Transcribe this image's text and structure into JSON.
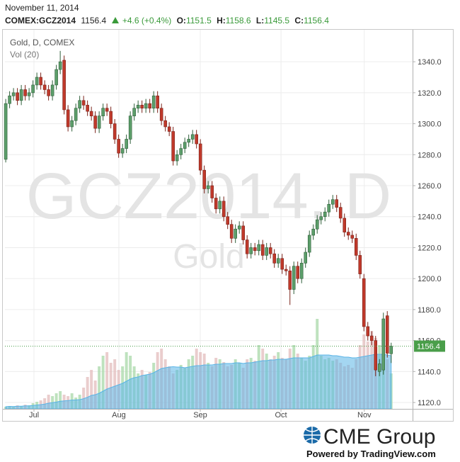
{
  "chart_data": {
    "type": "candlestick",
    "date_label": "November 11, 2014",
    "symbol": "COMEX:GCZ2014",
    "change": "+4.6 (+0.4%)",
    "ohlc_labels": [
      "O:",
      "H:",
      "L:",
      "C:"
    ],
    "legend": "Gold, D, COMEX",
    "volume_label": "Vol (20)",
    "watermark": "GCZ2014, D",
    "watermark_sub": "Gold",
    "open": [
      1277,
      1313,
      1318,
      1320,
      1315,
      1322,
      1318,
      1320,
      1325,
      1330,
      1325,
      1322,
      1318,
      1325,
      1335,
      1341,
      1309,
      1298,
      1302,
      1310,
      1315,
      1312,
      1308,
      1305,
      1297,
      1305,
      1310,
      1308,
      1300,
      1290,
      1281,
      1284,
      1290,
      1305,
      1310,
      1312,
      1310,
      1313,
      1310,
      1318,
      1310,
      1302,
      1298,
      1295,
      1276,
      1280,
      1284,
      1288,
      1290,
      1293,
      1287,
      1270,
      1258,
      1260,
      1252,
      1245,
      1250,
      1240,
      1235,
      1226,
      1232,
      1234,
      1225,
      1216,
      1220,
      1218,
      1222,
      1215,
      1220,
      1216,
      1210,
      1213,
      1206,
      1205,
      1193,
      1208,
      1200,
      1210,
      1217,
      1228,
      1232,
      1238,
      1240,
      1243,
      1248,
      1251,
      1246,
      1239,
      1230,
      1228,
      1226,
      1215,
      1200,
      1169,
      1163,
      1160,
      1140,
      1141,
      1176,
      1151.5
    ],
    "high": [
      1316,
      1321,
      1323,
      1323,
      1325,
      1325,
      1323,
      1328,
      1333,
      1333,
      1328,
      1325,
      1328,
      1338,
      1347,
      1344,
      1312,
      1305,
      1313,
      1318,
      1318,
      1315,
      1311,
      1308,
      1308,
      1313,
      1313,
      1311,
      1303,
      1293,
      1287,
      1293,
      1308,
      1313,
      1315,
      1315,
      1316,
      1316,
      1321,
      1321,
      1313,
      1305,
      1301,
      1298,
      1283,
      1287,
      1291,
      1293,
      1296,
      1296,
      1290,
      1273,
      1263,
      1263,
      1255,
      1253,
      1253,
      1243,
      1238,
      1235,
      1237,
      1237,
      1228,
      1223,
      1223,
      1225,
      1225,
      1223,
      1223,
      1219,
      1216,
      1216,
      1209,
      1208,
      1211,
      1211,
      1213,
      1220,
      1231,
      1235,
      1241,
      1243,
      1246,
      1251,
      1254,
      1254,
      1249,
      1242,
      1233,
      1231,
      1229,
      1218,
      1203,
      1172,
      1166,
      1163,
      1148,
      1178,
      1179,
      1158.6
    ],
    "low": [
      1275,
      1310,
      1315,
      1312,
      1312,
      1315,
      1315,
      1317,
      1322,
      1322,
      1319,
      1315,
      1315,
      1322,
      1332,
      1306,
      1295,
      1295,
      1299,
      1307,
      1309,
      1305,
      1302,
      1294,
      1294,
      1302,
      1305,
      1297,
      1287,
      1278,
      1278,
      1281,
      1287,
      1302,
      1307,
      1307,
      1307,
      1307,
      1307,
      1307,
      1299,
      1295,
      1292,
      1273,
      1273,
      1277,
      1281,
      1285,
      1287,
      1284,
      1267,
      1255,
      1255,
      1249,
      1242,
      1242,
      1237,
      1232,
      1223,
      1223,
      1229,
      1222,
      1213,
      1213,
      1215,
      1215,
      1212,
      1212,
      1213,
      1207,
      1207,
      1203,
      1202,
      1183,
      1190,
      1197,
      1197,
      1207,
      1214,
      1225,
      1229,
      1235,
      1237,
      1240,
      1245,
      1243,
      1236,
      1227,
      1225,
      1223,
      1212,
      1200,
      1166,
      1160,
      1157,
      1137,
      1137,
      1138,
      1149,
      1145.5
    ],
    "close": [
      1313,
      1318,
      1320,
      1315,
      1322,
      1318,
      1320,
      1325,
      1330,
      1325,
      1322,
      1318,
      1325,
      1335,
      1340,
      1309,
      1298,
      1302,
      1310,
      1315,
      1312,
      1308,
      1305,
      1297,
      1305,
      1310,
      1308,
      1300,
      1290,
      1281,
      1284,
      1290,
      1305,
      1310,
      1312,
      1310,
      1313,
      1310,
      1318,
      1310,
      1302,
      1298,
      1295,
      1276,
      1280,
      1284,
      1288,
      1290,
      1293,
      1287,
      1270,
      1258,
      1260,
      1252,
      1245,
      1250,
      1240,
      1235,
      1226,
      1232,
      1234,
      1225,
      1216,
      1220,
      1218,
      1222,
      1215,
      1220,
      1216,
      1210,
      1213,
      1206,
      1205,
      1193,
      1208,
      1200,
      1210,
      1217,
      1228,
      1232,
      1238,
      1240,
      1243,
      1248,
      1251,
      1246,
      1239,
      1230,
      1228,
      1226,
      1215,
      1203,
      1169,
      1163,
      1160,
      1141,
      1145,
      1174,
      1151.8,
      1156.4
    ],
    "volume": [
      3,
      4,
      3,
      5,
      4,
      6,
      5,
      8,
      10,
      12,
      15,
      20,
      18,
      22,
      25,
      20,
      18,
      22,
      16,
      20,
      30,
      45,
      55,
      40,
      60,
      75,
      80,
      65,
      70,
      55,
      60,
      80,
      75,
      60,
      50,
      55,
      48,
      52,
      65,
      80,
      85,
      70,
      60,
      50,
      55,
      62,
      58,
      70,
      75,
      85,
      80,
      78,
      65,
      60,
      72,
      70,
      66,
      60,
      62,
      70,
      65,
      58,
      70,
      72,
      68,
      90,
      85,
      78,
      70,
      75,
      80,
      72,
      70,
      85,
      90,
      78,
      72,
      68,
      75,
      90,
      127,
      75,
      70,
      72,
      68,
      70,
      65,
      60,
      62,
      58,
      70,
      90,
      105,
      95,
      110,
      100,
      90,
      85,
      70,
      50
    ],
    "volume_ma": [
      3,
      3.5,
      3.3,
      3.8,
      3.8,
      4.2,
      4.3,
      4.8,
      5.4,
      6,
      6.8,
      8,
      8.7,
      9.6,
      10.7,
      11.3,
      11.7,
      12.4,
      12.6,
      13,
      14.4,
      16.4,
      19,
      20,
      22,
      25,
      28,
      30,
      32,
      34,
      36,
      39,
      42,
      44,
      45,
      47,
      48,
      49,
      51,
      54,
      57,
      58,
      59,
      59.5,
      59,
      59,
      58,
      59,
      60,
      61,
      61,
      62,
      62,
      62,
      63,
      63,
      64,
      64,
      64,
      65,
      65,
      64,
      65,
      65,
      66,
      67,
      68,
      68,
      69,
      69,
      70,
      70,
      70,
      71,
      72,
      72,
      72,
      72,
      72,
      74,
      76,
      76,
      76,
      76,
      75,
      75,
      74,
      73,
      73,
      72,
      72,
      73,
      74,
      75,
      76,
      77,
      77,
      77,
      76,
      75
    ],
    "xlim": [
      -0.2,
      104.5
    ],
    "xticks": [
      {
        "value": 7.25,
        "label": "Jul"
      },
      {
        "value": 29.06,
        "label": "Aug"
      },
      {
        "value": 49.97,
        "label": "Sep"
      },
      {
        "value": 70.7,
        "label": "Oct"
      },
      {
        "value": 92.1,
        "label": "Nov"
      }
    ],
    "ylim": [
      1115.9,
      1360.2
    ],
    "yticks": [
      {
        "value": 1120,
        "label": "1120.0"
      },
      {
        "value": 1140,
        "label": "1140.0"
      },
      {
        "value": 1160,
        "label": "1160.0"
      },
      {
        "value": 1180,
        "label": "1180.0"
      },
      {
        "value": 1200,
        "label": "1200.0"
      },
      {
        "value": 1220,
        "label": "1220.0"
      },
      {
        "value": 1240,
        "label": "1240.0"
      },
      {
        "value": 1260,
        "label": "1260.0"
      },
      {
        "value": 1280,
        "label": "1280.0"
      },
      {
        "value": 1300,
        "label": "1300.0"
      },
      {
        "value": 1320,
        "label": "1320.0"
      },
      {
        "value": 1340,
        "label": "1340.0"
      }
    ],
    "volume_ylim": [
      0,
      160
    ],
    "grid": true,
    "up_color": "#5c9e6a",
    "up_edge": "#2f5f3a",
    "down_color": "#c0392b",
    "down_edge": "#7a2219",
    "volume_up_color": "#a8d8a8",
    "volume_down_color": "#e3bcbc",
    "volume_ma_color": "#5ab4e6",
    "last_price_color": "#4a9e4a"
  },
  "footer": {
    "brand": "CME Group",
    "powered": "Powered by TradingView.com"
  }
}
